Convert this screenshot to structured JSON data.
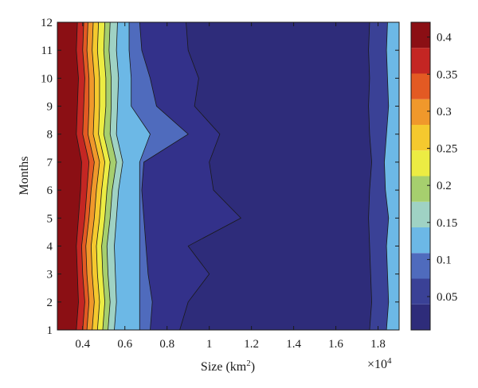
{
  "chart_data": {
    "type": "heatmap",
    "subtype": "filled-contour",
    "title": "",
    "xlabel": "Size (km",
    "xlabel_superscript": "2",
    "xlabel_suffix": ")",
    "ylabel": "Months",
    "x_multiplier_label": "×10",
    "x_multiplier_exponent": "4",
    "xlim": [
      2800,
      19000
    ],
    "ylim": [
      1,
      12
    ],
    "x_ticks": [
      4000,
      6000,
      8000,
      10000,
      12000,
      14000,
      16000,
      18000
    ],
    "x_tick_labels": [
      "0.4",
      "0.6",
      "0.8",
      "1",
      "1.2",
      "1.4",
      "1.6",
      "1.8"
    ],
    "y_ticks": [
      1,
      2,
      3,
      4,
      5,
      6,
      7,
      8,
      9,
      10,
      11,
      12
    ],
    "y_tick_labels": [
      "1",
      "2",
      "3",
      "4",
      "5",
      "6",
      "7",
      "8",
      "9",
      "10",
      "11",
      "12"
    ],
    "colorbar": {
      "min": 0.005,
      "max": 0.42,
      "ticks": [
        0.05,
        0.1,
        0.15,
        0.2,
        0.25,
        0.3,
        0.35,
        0.4
      ],
      "tick_labels": [
        "0.05",
        "0.1",
        "0.15",
        "0.2",
        "0.25",
        "0.3",
        "0.35",
        "0.4"
      ],
      "colors": [
        "#2e2c7a",
        "#3a4196",
        "#4f6bbd",
        "#6cb8e6",
        "#9fd2c4",
        "#a6cf6e",
        "#ecec43",
        "#f5c92e",
        "#f0982b",
        "#e35a23",
        "#c42623",
        "#8b0f14"
      ]
    },
    "levels": [
      0.065,
      0.1,
      0.135,
      0.17,
      0.2,
      0.23,
      0.26,
      0.29,
      0.32,
      0.35,
      0.385
    ],
    "columns_x": [
      3000,
      3500,
      4000,
      4500,
      5000,
      5600,
      6300,
      7000,
      8000,
      9000,
      10000,
      11000,
      12000,
      14000,
      16000,
      17500,
      18200,
      19000
    ],
    "contour_boundaries_x": [
      [
        3700,
        3800,
        3750,
        3700,
        3800,
        3900,
        3950,
        3700,
        3750,
        3800,
        3700,
        3750
      ],
      [
        4000,
        4100,
        4000,
        3950,
        4100,
        4200,
        4300,
        4000,
        4050,
        4100,
        4000,
        4050
      ],
      [
        4200,
        4300,
        4200,
        4150,
        4300,
        4400,
        4550,
        4250,
        4300,
        4300,
        4200,
        4250
      ],
      [
        4450,
        4550,
        4450,
        4400,
        4550,
        4650,
        4800,
        4500,
        4550,
        4550,
        4450,
        4500
      ],
      [
        4700,
        4800,
        4700,
        4650,
        4800,
        4900,
        5050,
        4750,
        4800,
        4800,
        4700,
        4750
      ],
      [
        4950,
        5050,
        4950,
        4900,
        5050,
        5150,
        5300,
        5000,
        5100,
        5100,
        5000,
        5050
      ],
      [
        5200,
        5300,
        5200,
        5150,
        5300,
        5400,
        5600,
        5300,
        5350,
        5350,
        5250,
        5300
      ],
      [
        5500,
        5600,
        5550,
        5500,
        5600,
        5700,
        5900,
        5600,
        5650,
        5700,
        5600,
        5650
      ],
      [
        6700,
        6700,
        6700,
        6700,
        6700,
        6700,
        6700,
        7200,
        6300,
        6300,
        6200,
        6200
      ],
      [
        7200,
        7300,
        7100,
        7000,
        6900,
        6800,
        6900,
        9000,
        7500,
        7200,
        6800,
        6700
      ],
      [
        17600,
        17700,
        17650,
        17600,
        17550,
        17600,
        17700,
        17600,
        17550,
        17600,
        17550,
        17600
      ],
      [
        18400,
        18500,
        18450,
        18400,
        18500,
        18350,
        18300,
        18400,
        18500,
        18450,
        18400,
        18450
      ]
    ],
    "dark_region_boundary_x": [
      8600,
      9000,
      10000,
      9000,
      11500,
      10200,
      10000,
      10500,
      9300,
      9500,
      9000,
      8900
    ]
  }
}
